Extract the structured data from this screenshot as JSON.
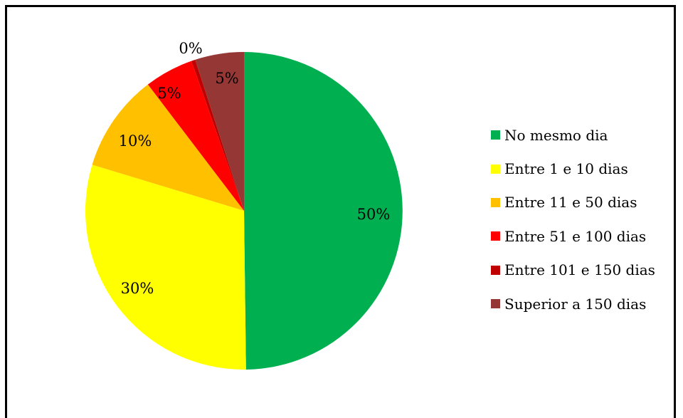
{
  "chart_data": {
    "type": "pie",
    "categories": [
      "No mesmo dia",
      "Entre 1 e 10 dias",
      "Entre 11 e 50 dias",
      "Entre 51 e 100 dias",
      "Entre 101 e 150 dias",
      "Superior a 150 dias"
    ],
    "values": [
      50,
      30,
      10,
      5,
      0.4,
      5
    ],
    "data_labels": [
      "50%",
      "30%",
      "10%",
      "5%",
      "0%",
      "5%"
    ],
    "colors": [
      "#00b050",
      "#ffff00",
      "#ffc000",
      "#ff0000",
      "#c00000",
      "#953735"
    ],
    "legend_position": "right",
    "start_angle": "12 o'clock, clockwise"
  }
}
